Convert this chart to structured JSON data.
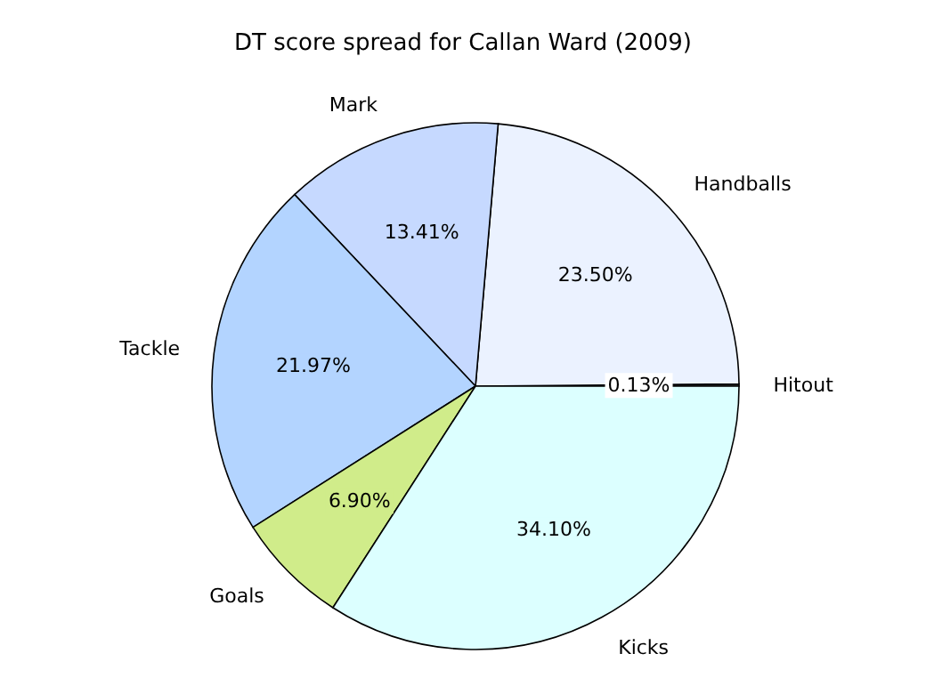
{
  "chart_data": {
    "type": "pie",
    "title": "DT score spread for Callan Ward (2009)",
    "categories": [
      "Hitout",
      "Handballs",
      "Mark",
      "Tackle",
      "Goals",
      "Kicks"
    ],
    "values": [
      0.13,
      23.5,
      13.41,
      21.97,
      6.9,
      34.1
    ],
    "value_labels": [
      "0.13%",
      "23.50%",
      "13.41%",
      "21.97%",
      "6.90%",
      "34.10%"
    ],
    "colors": [
      "#ffffff",
      "#ebf2ff",
      "#c6d9ff",
      "#b3d4ff",
      "#d0ec8a",
      "#dcffff"
    ],
    "legend": false
  }
}
